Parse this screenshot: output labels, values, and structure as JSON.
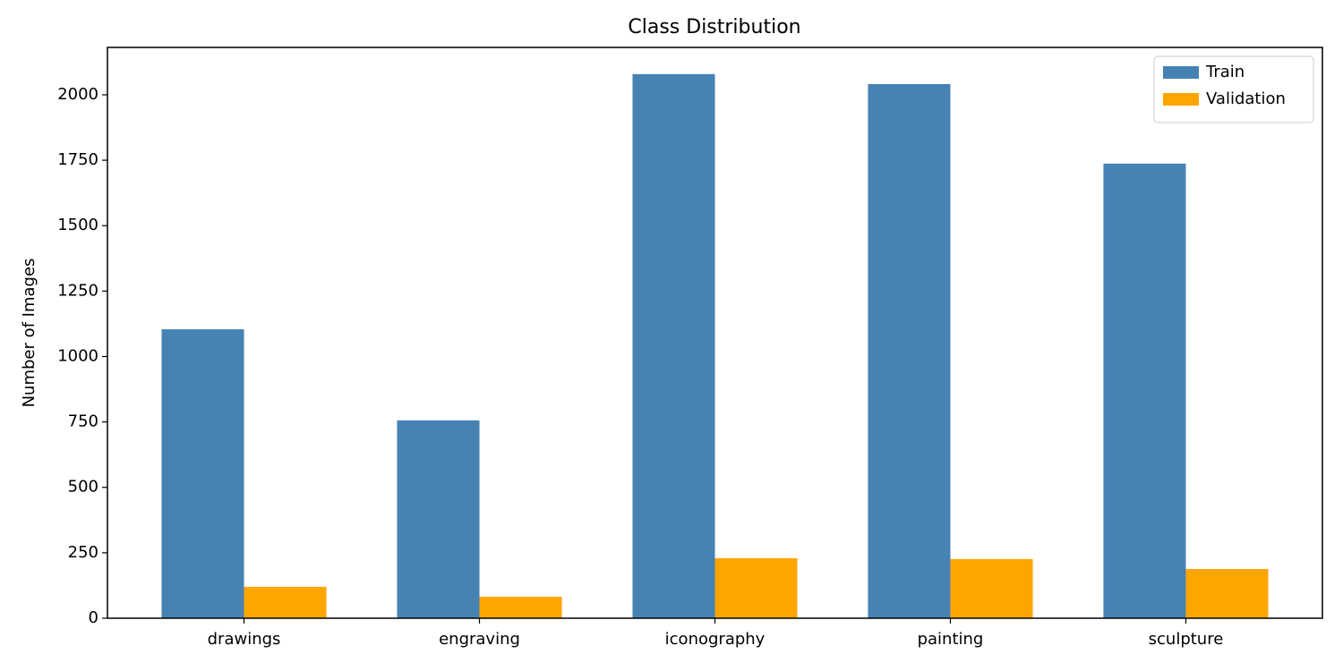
{
  "chart_data": {
    "type": "bar",
    "title": "Class Distribution",
    "y_label": "Number of Images",
    "categories": [
      "drawings",
      "engraving",
      "iconography",
      "painting",
      "sculpture"
    ],
    "series": [
      {
        "name": "Train",
        "color": "#4682b4",
        "values": [
          1104,
          756,
          2079,
          2041,
          1737
        ]
      },
      {
        "name": "Validation",
        "color": "#ffa500",
        "values": [
          120,
          82,
          229,
          226,
          188
        ]
      }
    ],
    "ylim": [
      0,
      2181
    ],
    "yticks": [
      0,
      250,
      500,
      750,
      1000,
      1250,
      1500,
      1750,
      2000
    ],
    "legend": "upper right"
  }
}
